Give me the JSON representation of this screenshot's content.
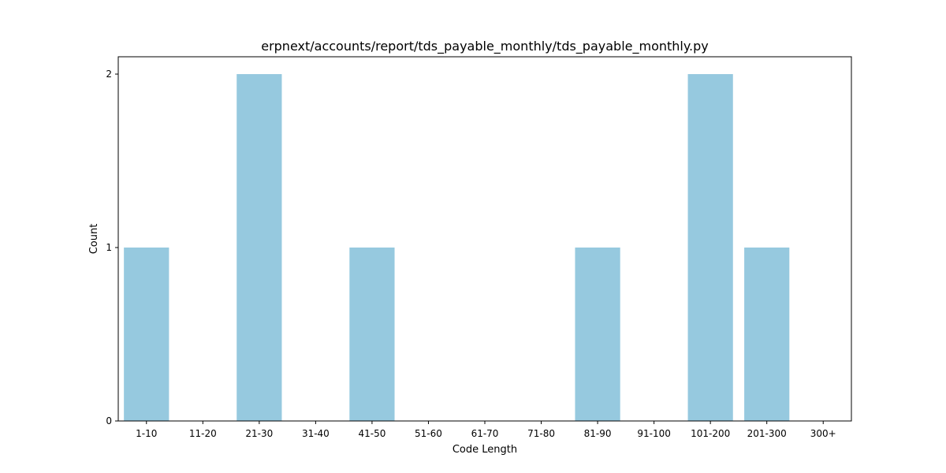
{
  "chart_data": {
    "type": "bar",
    "title": "erpnext/accounts/report/tds_payable_monthly/tds_payable_monthly.py",
    "xlabel": "Code Length",
    "ylabel": "Count",
    "categories": [
      "1-10",
      "11-20",
      "21-30",
      "31-40",
      "41-50",
      "51-60",
      "61-70",
      "71-80",
      "81-90",
      "91-100",
      "101-200",
      "201-300",
      "300+"
    ],
    "values": [
      1,
      0,
      2,
      0,
      1,
      0,
      0,
      0,
      1,
      0,
      2,
      1,
      0
    ],
    "ylim": [
      0,
      2.1
    ],
    "yticks": [
      "0",
      "1",
      "2"
    ],
    "grid": false,
    "legend": false,
    "colors": {
      "bar": "#96c9df",
      "axis": "#000000",
      "background": "#ffffff"
    }
  }
}
